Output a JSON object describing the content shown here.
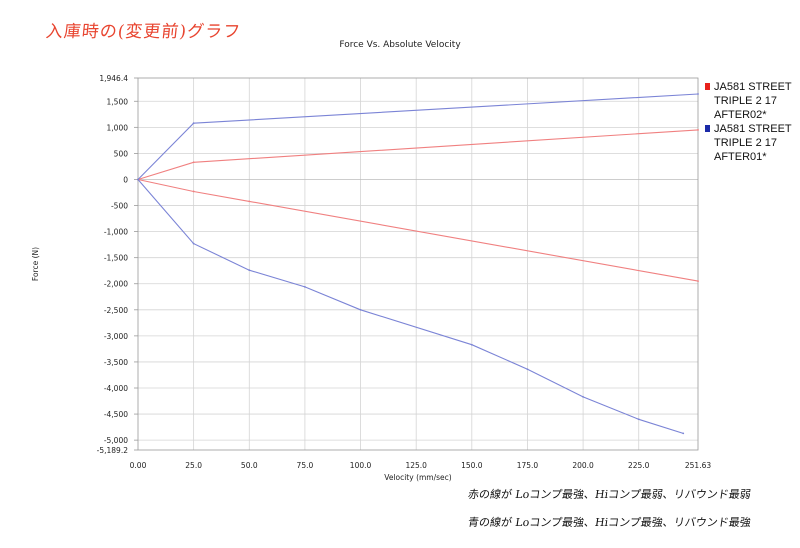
{
  "annotations": {
    "top_title": "入庫時の(変更前)グラフ",
    "note_red": "赤の線が Loコンプ最強、Hiコンプ最弱、リバウンド最弱",
    "note_blue": "青の線が Loコンプ最強、Hiコンプ最強、リバウンド最強"
  },
  "chart_data": {
    "type": "line",
    "title": "Force Vs. Absolute Velocity",
    "xlabel": "Velocity (mm/sec)",
    "ylabel": "Force (N)",
    "xlim": [
      0,
      251.63
    ],
    "ylim": [
      -5189.2,
      1946.4
    ],
    "x_ticks": [
      0,
      25,
      50,
      75,
      100,
      125,
      150,
      175,
      200,
      225,
      251.63
    ],
    "x_tick_labels": [
      "0.00",
      "25.0",
      "50.0",
      "75.0",
      "100.0",
      "125.0",
      "150.0",
      "175.0",
      "200.0",
      "225.0",
      "251.63"
    ],
    "y_ticks": [
      1946.4,
      1500,
      1000,
      500,
      0,
      -500,
      -1000,
      -1500,
      -2000,
      -2500,
      -3000,
      -3500,
      -4000,
      -4500,
      -5000,
      -5189.2
    ],
    "y_tick_labels": [
      "1,946.4",
      "1,500",
      "1,000",
      "500",
      "0",
      "-500",
      "-1,000",
      "-1,500",
      "-2,000",
      "-2,500",
      "-3,000",
      "-3,500",
      "-4,000",
      "-4,500",
      "-5,000",
      "-5,189.2"
    ],
    "grid": true,
    "legend_position": "right",
    "series": [
      {
        "name": "JA581 STREET TRIPLE 2 17 AFTER02*",
        "color": "#e8211b",
        "line_color": "#f08080",
        "segments": [
          {
            "x": [
              0,
              25,
              251.63
            ],
            "y": [
              0,
              330,
              950
            ]
          },
          {
            "x": [
              0,
              25,
              50,
              251.63
            ],
            "y": [
              0,
              -230,
              -420,
              -1950
            ]
          }
        ]
      },
      {
        "name": "JA581 STREET TRIPLE 2 17 AFTER01*",
        "color": "#1b2aa8",
        "line_color": "#7b84d6",
        "segments": [
          {
            "x": [
              0,
              25,
              251.63
            ],
            "y": [
              0,
              1080,
              1640
            ]
          },
          {
            "x": [
              0,
              25,
              50,
              75,
              100,
              150,
              175,
              200,
              225,
              245
            ],
            "y": [
              0,
              -1230,
              -1740,
              -2060,
              -2500,
              -3170,
              -3640,
              -4170,
              -4600,
              -4870
            ]
          }
        ]
      }
    ]
  }
}
